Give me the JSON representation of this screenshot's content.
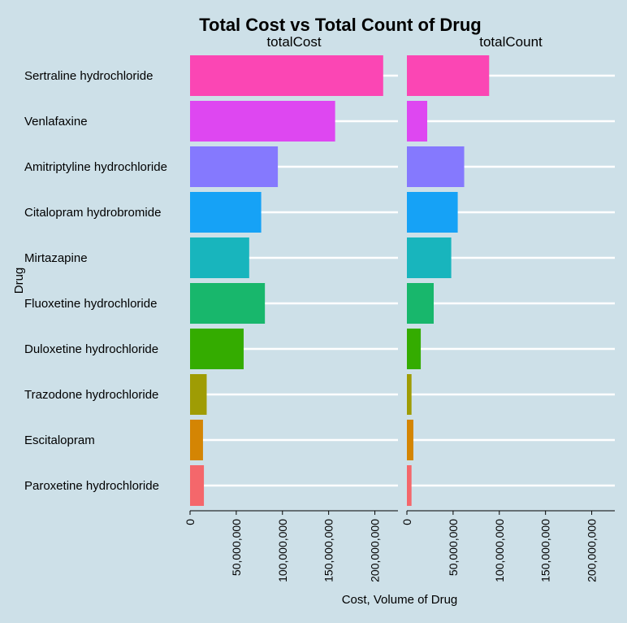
{
  "chart_data": {
    "type": "bar",
    "orientation": "horizontal",
    "title": "Total Cost vs Total Count of Drug",
    "ylabel": "Drug",
    "xlabel": "Cost, Volume of Drug",
    "categories": [
      "Sertraline hydrochloride",
      "Venlafaxine",
      "Amitriptyline hydrochloride",
      "Citalopram hydrobromide",
      "Mirtazapine",
      "Fluoxetine hydrochloride",
      "Duloxetine hydrochloride",
      "Trazodone hydrochloride",
      "Escitalopram",
      "Paroxetine hydrochloride"
    ],
    "colors": [
      "#fb46b4",
      "#de47f1",
      "#8579fe",
      "#16a2f6",
      "#18b5bd",
      "#18b76c",
      "#34ac00",
      "#9f9c04",
      "#d48503",
      "#f4676b"
    ],
    "facets": [
      {
        "name": "totalCost",
        "values": [
          209000000,
          157000000,
          95000000,
          77000000,
          64000000,
          81000000,
          58000000,
          18000000,
          14000000,
          15000000
        ]
      },
      {
        "name": "totalCount",
        "values": [
          89000000,
          22000000,
          62000000,
          55000000,
          48000000,
          29000000,
          15000000,
          5000000,
          7000000,
          5000000
        ]
      }
    ],
    "xlim": [
      0,
      225000000
    ],
    "xticks": [
      0,
      50000000,
      100000000,
      150000000,
      200000000
    ],
    "xtick_labels": [
      "0",
      "50,000,000",
      "100,000,000",
      "150,000,000",
      "200,000,000"
    ],
    "grid": true,
    "legend": "none"
  }
}
